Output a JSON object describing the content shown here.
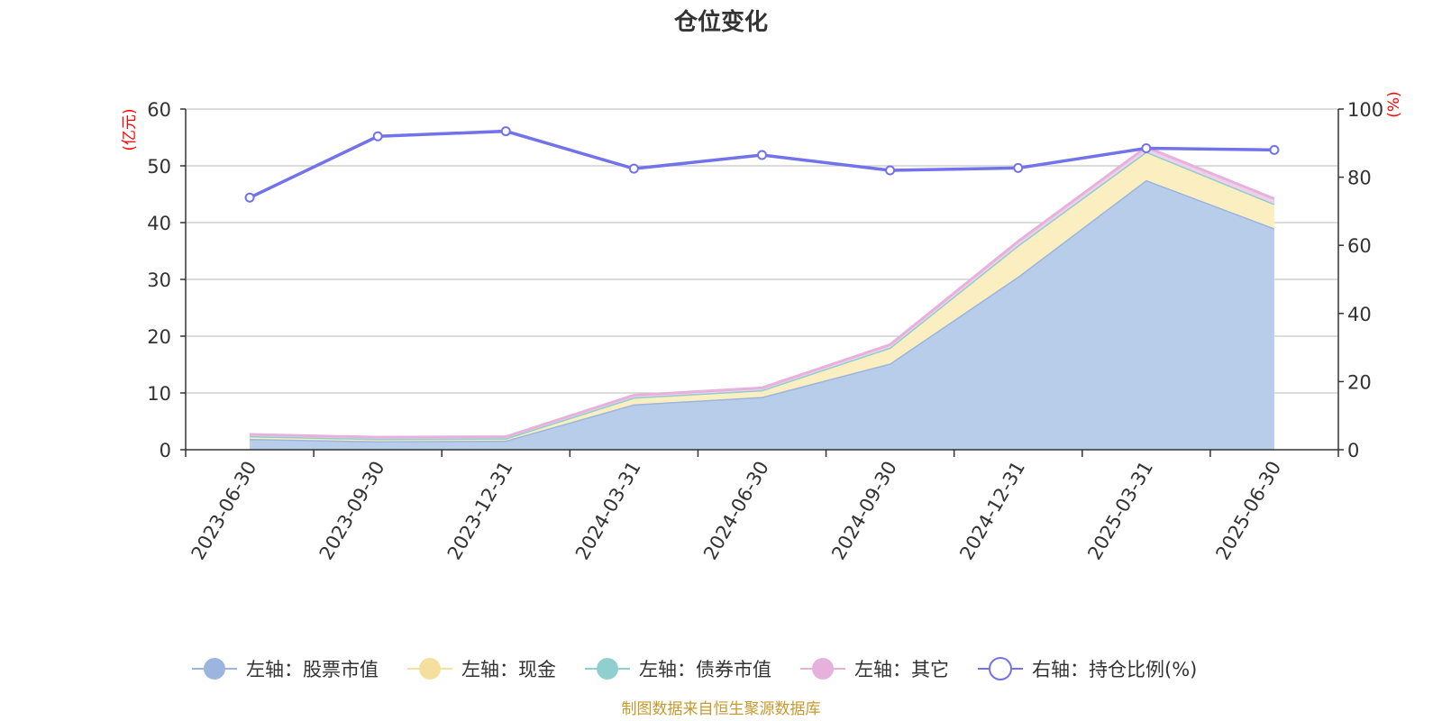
{
  "chart_data": {
    "type": "area",
    "title": "仓位变化",
    "categories": [
      "2023-06-30",
      "2023-09-30",
      "2023-12-31",
      "2024-03-31",
      "2024-06-30",
      "2024-09-30",
      "2024-12-31",
      "2025-03-31",
      "2025-06-30"
    ],
    "left_axis": {
      "unit": "(亿元)",
      "min": 0,
      "max": 60,
      "ticks": [
        "0",
        "10",
        "20",
        "30",
        "40",
        "50",
        "60"
      ]
    },
    "right_axis": {
      "unit": "(%)",
      "min": 0,
      "max": 100,
      "ticks": [
        "0",
        "20",
        "40",
        "60",
        "80",
        "100"
      ]
    },
    "stacked": true,
    "grid": true,
    "legend_position": "bottom",
    "series": [
      {
        "name": "左轴：股票市值",
        "axis": "left",
        "kind": "area",
        "line_color": "#9bb5de",
        "fill_color": "#b8cdea",
        "values": [
          1.9,
          1.5,
          1.6,
          8.0,
          9.3,
          15.2,
          30.5,
          47.5,
          39.0
        ]
      },
      {
        "name": "左轴：现金",
        "axis": "left",
        "kind": "area",
        "line_color": "#f5df9c",
        "fill_color": "#fbefc1",
        "values": [
          0.5,
          0.4,
          0.4,
          1.2,
          1.2,
          2.8,
          5.5,
          5.0,
          4.3
        ]
      },
      {
        "name": "左轴：债券市值",
        "axis": "left",
        "kind": "area",
        "line_color": "#8fcfd0",
        "fill_color": "#bfe3e3",
        "values": [
          0,
          0,
          0,
          0,
          0,
          0,
          0,
          0,
          0
        ]
      },
      {
        "name": "左轴：其它",
        "axis": "left",
        "kind": "area",
        "line_color": "#e6b2dc",
        "fill_color": "#f0cfe9",
        "values": [
          0.3,
          0.3,
          0.3,
          0.4,
          0.4,
          0.5,
          0.7,
          0.8,
          0.9
        ]
      },
      {
        "name": "右轴：持仓比例(%)",
        "axis": "right",
        "kind": "line",
        "line_color": "#7272ea",
        "values": [
          74.0,
          92.0,
          93.5,
          82.5,
          86.5,
          82.0,
          82.7,
          88.5,
          88.0
        ]
      }
    ],
    "source_note": "制图数据来自恒生聚源数据库"
  }
}
